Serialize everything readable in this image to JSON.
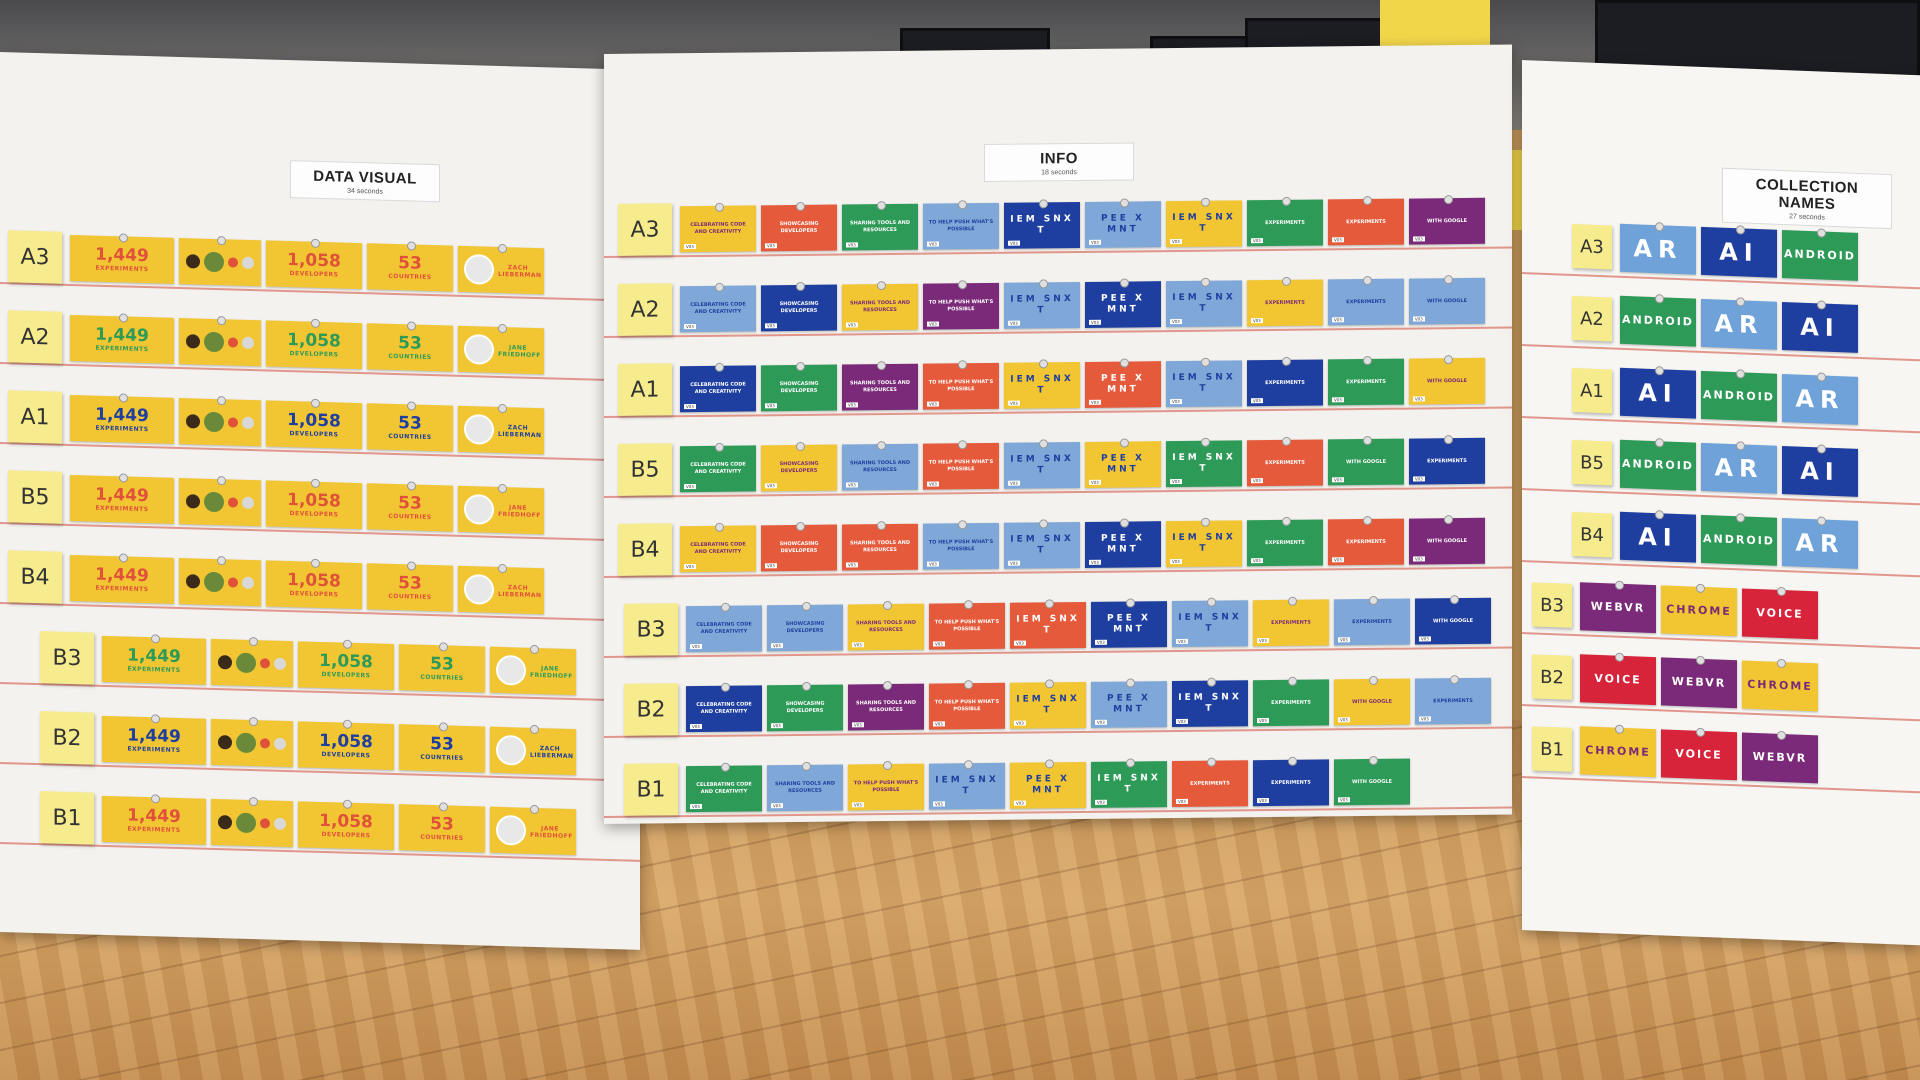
{
  "boards": {
    "data_visual": {
      "title": "DATA VISUAL",
      "subtitle": "34 seconds",
      "rows": [
        "A3",
        "A2",
        "A1",
        "B5",
        "B4",
        "B3",
        "B2",
        "B1"
      ],
      "stat_experiments": "1,449",
      "label_experiments": "EXPERIMENTS",
      "stat_developers": "1,058",
      "label_developers": "DEVELOPERS",
      "stat_countries": "53",
      "label_countries": "COUNTRIES",
      "person_a": "ZACH LIEBERMAN",
      "person_b": "JANE FRIEDHOFF",
      "colors": {
        "card": "#f2c632",
        "red": "#e0513a",
        "blue": "#1f3fa0",
        "green": "#2e9a58",
        "dark": "#3a2a1a"
      }
    },
    "info": {
      "title": "INFO",
      "subtitle": "18 seconds",
      "rows": [
        "A3",
        "A2",
        "A1",
        "B5",
        "B4",
        "B3",
        "B2",
        "B1"
      ],
      "text_celebrating": "CELEBRATING CODE AND CREATIVITY",
      "text_showcasing": "SHOWCASING DEVELOPERS",
      "text_sharing": "SHARING TOOLS AND RESOURCES",
      "text_push": "TO HELP PUSH WHAT'S POSSIBLE",
      "text_experiments": "EXPERIMENTS",
      "text_google": "WITH GOOGLE",
      "tag": "V03",
      "letters_a": "IEM SNX T",
      "letters_b": "PEE X MNT",
      "colors": {
        "yellow": "#f2c632",
        "red": "#e65a3c",
        "green": "#2e9a58",
        "blue": "#1f3fa0",
        "purple": "#7a2a78",
        "lightblue": "#7fa8d8"
      }
    },
    "collection_names": {
      "title": "COLLECTION NAMES",
      "subtitle": "27 seconds",
      "rows": [
        "A3",
        "A2",
        "A1",
        "B5",
        "B4",
        "B3",
        "B2",
        "B1"
      ],
      "text_ar": "AR",
      "text_ai": "AI",
      "text_android": "ANDROID",
      "text_webvr": "WEBVR",
      "text_chrome": "CHROME",
      "text_voice": "VOICE",
      "colors": {
        "lightblue": "#6fa2d8",
        "blue": "#1f3fa0",
        "green": "#2e9a58",
        "purple": "#7a2a78",
        "yellow": "#f2c632",
        "red": "#d8243a"
      }
    }
  }
}
